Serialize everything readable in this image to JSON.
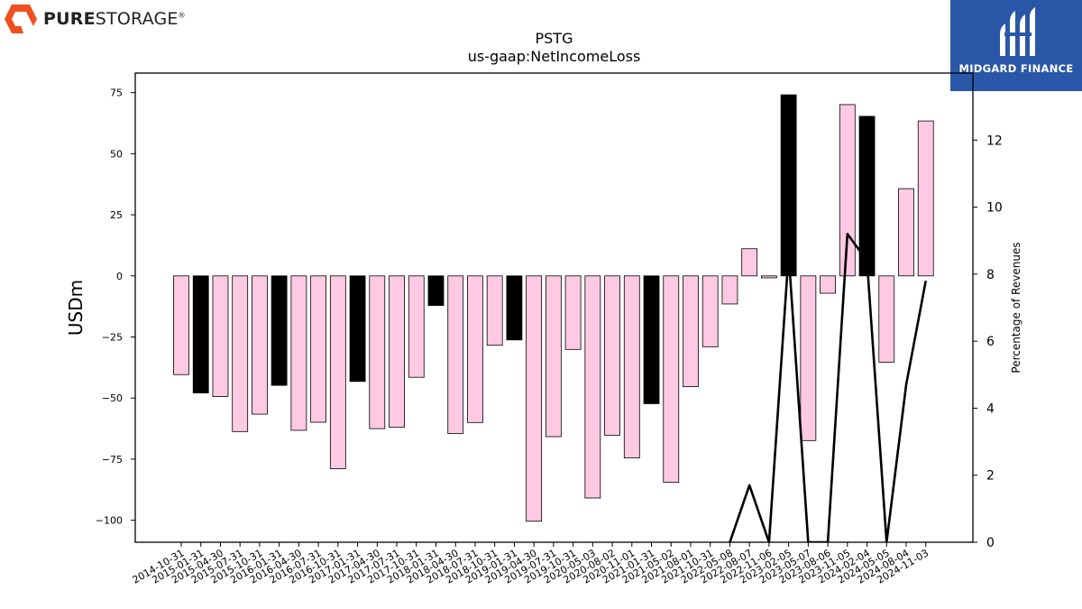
{
  "header": {
    "left_logo": {
      "word_bold": "PURE",
      "word_regular": "STORAGE",
      "mark": "®",
      "icon": "hexagon-logo-icon"
    },
    "right_logo": {
      "name": "MIDGARD FINANCE",
      "icon": "midgard-monogram-icon",
      "background": "#2b57a8"
    }
  },
  "chart_data": {
    "type": "bar",
    "title": "PSTG",
    "subtitle": "us-gaap:NetIncomeLoss",
    "ylabel": "USDm",
    "y2label": "Percentage of Revenues",
    "ylim": [
      -109,
      83
    ],
    "y2lim": [
      0,
      14
    ],
    "yticks": [
      75,
      50,
      25,
      0,
      -25,
      -50,
      -75,
      -100
    ],
    "ytick_labels": [
      "75",
      "50",
      "25",
      "0",
      "−25",
      "−50",
      "−75",
      "−100"
    ],
    "y2ticks": [
      0,
      2,
      4,
      6,
      8,
      10,
      12
    ],
    "categories": [
      "2014-10-31",
      "2015-01-31",
      "2015-04-30",
      "2015-07-31",
      "2015-10-31",
      "2016-01-31",
      "2016-04-30",
      "2016-07-31",
      "2016-10-31",
      "2017-01-31",
      "2017-04-30",
      "2017-07-31",
      "2017-10-31",
      "2018-01-31",
      "2018-04-30",
      "2018-07-31",
      "2018-10-31",
      "2019-01-31",
      "2019-04-30",
      "2019-07-31",
      "2019-10-31",
      "2020-05-03",
      "2020-08-02",
      "2020-11-01",
      "2021-01-31",
      "2021-05-02",
      "2021-08-01",
      "2021-10-31",
      "2022-05-08",
      "2022-08-07",
      "2022-11-06",
      "2023-02-05",
      "2023-05-07",
      "2023-08-06",
      "2023-11-05",
      "2024-02-04",
      "2024-05-05",
      "2024-08-04",
      "2024-11-03"
    ],
    "values": [
      -40.4,
      -47.9,
      -49.4,
      -63.7,
      -56.6,
      -44.8,
      -63.2,
      -59.9,
      -78.9,
      -43.2,
      -62.5,
      -61.9,
      -41.5,
      -12.1,
      -64.5,
      -60.0,
      -28.4,
      -26.2,
      -100.4,
      -65.8,
      -30.1,
      -90.9,
      -65.2,
      -74.5,
      -52.3,
      -84.5,
      -45.3,
      -29.0,
      -11.5,
      11.1,
      -0.8,
      74.1,
      -67.4,
      -7.1,
      70.1,
      65.3,
      -35.3,
      35.7,
      63.4
    ],
    "bar_colors": [
      "pink",
      "black",
      "pink",
      "pink",
      "pink",
      "black",
      "pink",
      "pink",
      "pink",
      "black",
      "pink",
      "pink",
      "pink",
      "black",
      "pink",
      "pink",
      "pink",
      "black",
      "pink",
      "pink",
      "pink",
      "pink",
      "pink",
      "pink",
      "black",
      "pink",
      "pink",
      "pink",
      "pink",
      "pink",
      "pink",
      "black",
      "pink",
      "pink",
      "pink",
      "black",
      "pink",
      "pink",
      "pink"
    ],
    "colors": {
      "pink": "#fdc9e3",
      "black": "#000000",
      "line": "#000000"
    },
    "line_series": {
      "name": "Percentage of Revenues",
      "values": [
        null,
        null,
        null,
        null,
        null,
        null,
        null,
        null,
        null,
        null,
        null,
        null,
        null,
        null,
        null,
        null,
        null,
        null,
        null,
        null,
        null,
        null,
        null,
        null,
        null,
        null,
        null,
        null,
        0,
        1.7,
        0,
        8.6,
        0,
        0,
        9.2,
        8.4,
        0,
        4.7,
        7.8
      ]
    },
    "grid": false,
    "legend": "none"
  }
}
